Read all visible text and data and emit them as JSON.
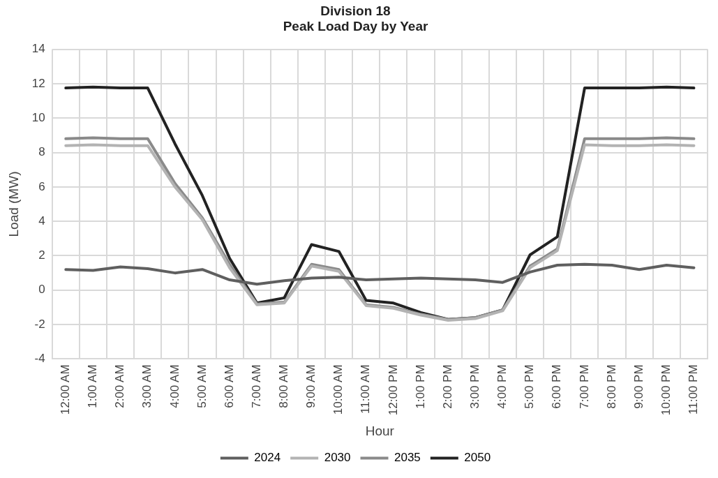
{
  "chart_data": {
    "type": "line",
    "title": "Division 18\nPeak Load Day by Year",
    "xlabel": "Hour",
    "ylabel": "Load (MW)",
    "categories": [
      "12:00 AM",
      "1:00 AM",
      "2:00 AM",
      "3:00 AM",
      "4:00 AM",
      "5:00 AM",
      "6:00 AM",
      "7:00 AM",
      "8:00 AM",
      "9:00 AM",
      "10:00 AM",
      "11:00 AM",
      "12:00 PM",
      "1:00 PM",
      "2:00 PM",
      "3:00 PM",
      "4:00 PM",
      "5:00 PM",
      "6:00 PM",
      "7:00 PM",
      "8:00 PM",
      "9:00 PM",
      "10:00 PM",
      "11:00 PM"
    ],
    "series": [
      {
        "name": "2024",
        "color": "#5f5f5f",
        "values": [
          1.2,
          1.15,
          1.35,
          1.25,
          1.0,
          1.2,
          0.6,
          0.35,
          0.55,
          0.7,
          0.75,
          0.6,
          0.65,
          0.7,
          0.65,
          0.6,
          0.45,
          1.05,
          1.45,
          1.5,
          1.45,
          1.2,
          1.45,
          1.3
        ]
      },
      {
        "name": "2030",
        "color": "#b3b3b3",
        "values": [
          8.4,
          8.45,
          8.4,
          8.4,
          6.0,
          4.1,
          1.3,
          -0.85,
          -0.75,
          1.4,
          1.1,
          -0.9,
          -1.05,
          -1.45,
          -1.75,
          -1.65,
          -1.2,
          1.3,
          2.3,
          8.45,
          8.4,
          8.4,
          8.45,
          8.4
        ]
      },
      {
        "name": "2035",
        "color": "#8a8a8a",
        "values": [
          8.8,
          8.85,
          8.8,
          8.8,
          6.2,
          4.2,
          1.5,
          -0.8,
          -0.7,
          1.5,
          1.2,
          -0.85,
          -1.0,
          -1.4,
          -1.7,
          -1.6,
          -1.15,
          1.4,
          2.4,
          8.8,
          8.8,
          8.8,
          8.85,
          8.8
        ]
      },
      {
        "name": "2050",
        "color": "#222222",
        "values": [
          11.75,
          11.8,
          11.75,
          11.75,
          8.5,
          5.5,
          1.85,
          -0.75,
          -0.45,
          2.65,
          2.25,
          -0.6,
          -0.75,
          -1.3,
          -1.7,
          -1.6,
          -1.15,
          2.05,
          3.1,
          11.75,
          11.75,
          11.75,
          11.8,
          11.75
        ]
      }
    ],
    "ylim": [
      -4,
      14
    ],
    "yticks": [
      -4,
      -2,
      0,
      2,
      4,
      6,
      8,
      10,
      12,
      14
    ],
    "grid": true,
    "legend": "bottom",
    "marker": "none",
    "line_style": "solid"
  }
}
